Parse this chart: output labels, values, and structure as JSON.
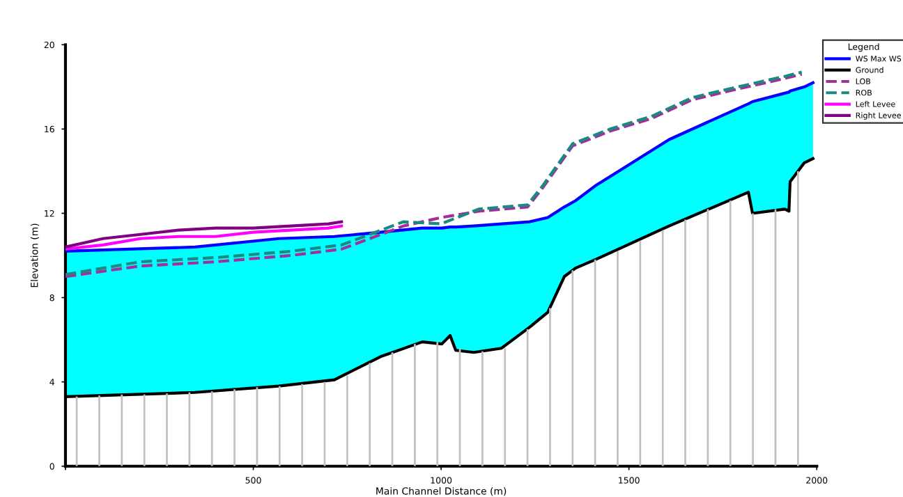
{
  "chart_data": {
    "type": "line",
    "xlabel": "Main Channel Distance (m)",
    "ylabel": "Elevation (m)",
    "legend_title": "Legend",
    "xlim": [
      0,
      2000
    ],
    "xticks": [
      {
        "value": 0,
        "label": null
      },
      500,
      1000,
      1500,
      2000
    ],
    "ylim": [
      0,
      20
    ],
    "yticks": [
      0,
      4,
      8,
      12,
      16,
      20
    ],
    "grid": false,
    "legend": "top right",
    "series": [
      {
        "type": "bar",
        "color": "#c0c0c0",
        "x": [
          30,
          90,
          150,
          210,
          270,
          330,
          390,
          450,
          510,
          570,
          630,
          690,
          750,
          810,
          870,
          930,
          990,
          1050,
          1110,
          1170,
          1230,
          1290,
          1350,
          1410,
          1470,
          1530,
          1590,
          1650,
          1710,
          1770,
          1830,
          1890,
          1950
        ],
        "values": [
          3.3,
          3.35,
          3.4,
          3.4,
          3.45,
          3.5,
          3.55,
          3.65,
          3.75,
          3.8,
          3.9,
          4.0,
          4.3,
          4.9,
          5.4,
          5.8,
          5.9,
          5.6,
          5.45,
          5.6,
          6.5,
          7.5,
          9.3,
          9.8,
          10.2,
          10.7,
          11.2,
          11.7,
          12.2,
          12.6,
          12.0,
          12.2,
          14.0
        ]
      },
      {
        "name": "WS Max WS",
        "color": "#0000ff",
        "line_style": "solid",
        "x": [
          0,
          345,
          568,
          716,
          839,
          950,
          1002,
          1024,
          1039,
          1087,
          1161,
          1236,
          1284,
          1328,
          1358,
          1410,
          1607,
          1818,
          1829,
          1915,
          1926,
          1929,
          1967,
          1990
        ],
        "values": [
          10.2,
          10.4,
          10.8,
          10.9,
          11.1,
          11.3,
          11.3,
          11.35,
          11.35,
          11.4,
          11.5,
          11.6,
          11.8,
          12.3,
          12.6,
          13.3,
          15.5,
          17.2,
          17.3,
          17.7,
          17.75,
          17.8,
          18.0,
          18.2
        ],
        "upper": [
          10.2,
          10.4,
          10.8,
          10.9,
          11.1,
          11.3,
          11.3,
          11.35,
          11.35,
          11.4,
          11.5,
          11.6,
          11.8,
          12.3,
          12.6,
          13.3,
          15.5,
          17.2,
          17.3,
          17.7,
          17.75,
          17.8,
          18.0,
          18.2
        ],
        "lower": [
          3.3,
          3.5,
          3.8,
          4.1,
          5.2,
          5.9,
          5.8,
          6.2,
          5.5,
          5.4,
          5.6,
          6.6,
          7.3,
          9.0,
          9.4,
          9.8,
          11.4,
          13.0,
          12.0,
          12.2,
          12.1,
          13.5,
          14.4,
          14.6
        ]
      },
      {
        "name": "Ground",
        "color": "#000000",
        "line_style": "solid",
        "x": [
          0,
          345,
          568,
          716,
          839,
          950,
          1002,
          1024,
          1039,
          1087,
          1161,
          1236,
          1284,
          1328,
          1358,
          1410,
          1607,
          1818,
          1829,
          1915,
          1926,
          1929,
          1967,
          1990
        ],
        "values": [
          3.3,
          3.5,
          3.8,
          4.1,
          5.2,
          5.9,
          5.8,
          6.2,
          5.5,
          5.4,
          5.6,
          6.6,
          7.3,
          9.0,
          9.4,
          9.8,
          11.4,
          13.0,
          12.0,
          12.2,
          12.1,
          13.5,
          14.4,
          14.6
        ]
      },
      {
        "name": "LOB",
        "color": "#a0309a",
        "line_style": "dashed",
        "x": [
          0,
          200,
          400,
          600,
          735,
          900,
          1000,
          1100,
          1230,
          1270,
          1350,
          1450,
          1560,
          1670,
          1790,
          1915,
          1960
        ],
        "values": [
          9.0,
          9.5,
          9.7,
          10.0,
          10.3,
          11.4,
          11.8,
          12.1,
          12.3,
          13.2,
          15.2,
          15.9,
          16.5,
          17.4,
          17.9,
          18.4,
          18.6
        ]
      },
      {
        "name": "ROB",
        "color": "#1a8a80",
        "line_style": "dashed",
        "x": [
          0,
          200,
          400,
          600,
          735,
          900,
          1000,
          1100,
          1230,
          1270,
          1350,
          1450,
          1560,
          1670,
          1790,
          1915,
          1960
        ],
        "values": [
          9.1,
          9.7,
          9.9,
          10.2,
          10.5,
          11.6,
          11.5,
          12.2,
          12.4,
          13.3,
          15.3,
          16.0,
          16.6,
          17.5,
          18.0,
          18.5,
          18.7
        ]
      },
      {
        "name": "Left Levee",
        "color": "#ff00ff",
        "line_style": "solid",
        "x": [
          0,
          100,
          200,
          300,
          400,
          500,
          600,
          700,
          735
        ],
        "values": [
          10.3,
          10.5,
          10.8,
          10.9,
          10.9,
          11.1,
          11.2,
          11.3,
          11.4
        ]
      },
      {
        "name": "Right Levee",
        "color": "#800080",
        "line_style": "solid",
        "x": [
          0,
          100,
          200,
          300,
          400,
          500,
          600,
          700,
          735
        ],
        "values": [
          10.4,
          10.8,
          11.0,
          11.2,
          11.3,
          11.3,
          11.4,
          11.5,
          11.6
        ]
      }
    ]
  }
}
